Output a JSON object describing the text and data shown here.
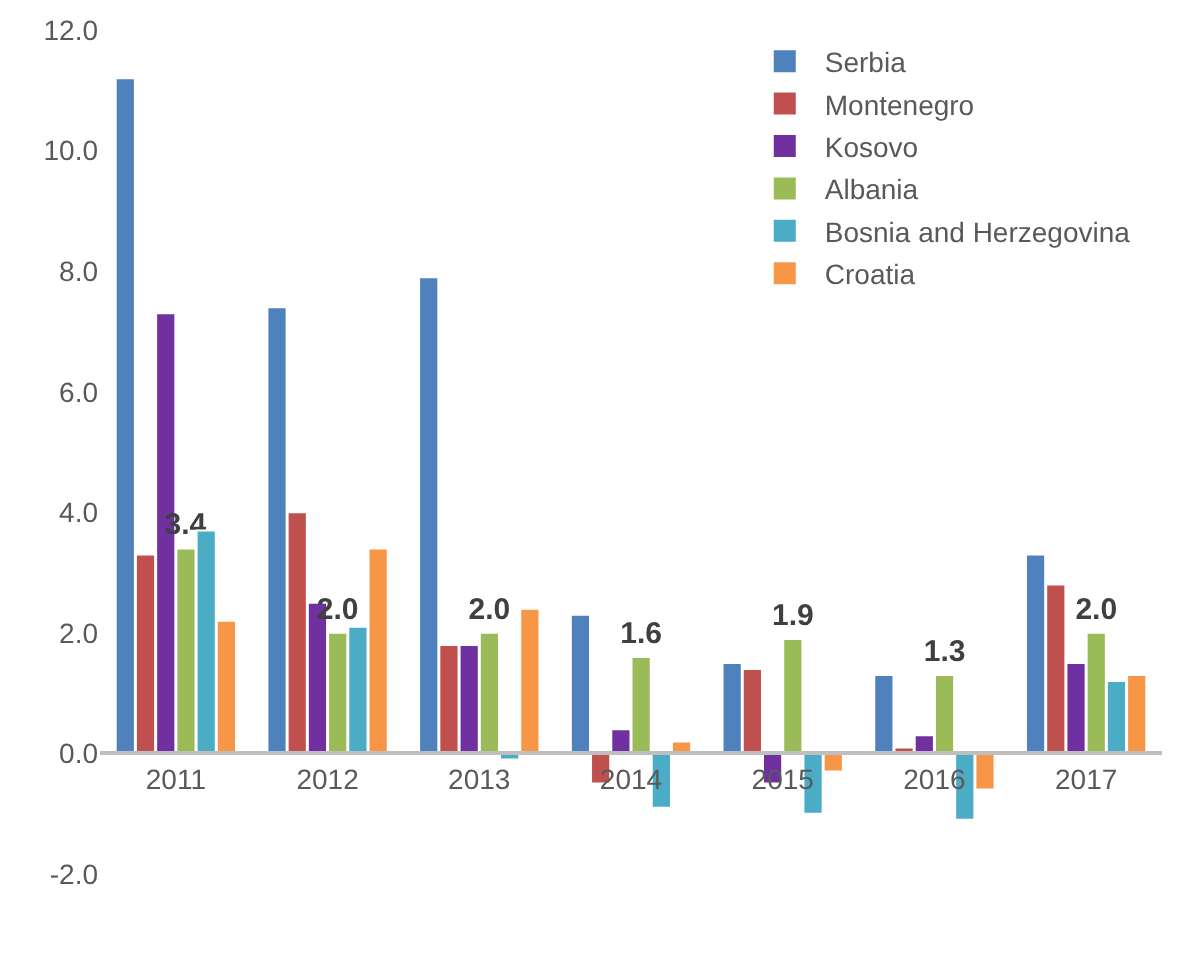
{
  "chart_data": {
    "type": "bar",
    "categories": [
      "2011",
      "2012",
      "2013",
      "2014",
      "2015",
      "2016",
      "2017"
    ],
    "series": [
      {
        "name": "Serbia",
        "color": "#4f81bd",
        "values": [
          11.2,
          7.4,
          7.9,
          2.3,
          1.5,
          1.3,
          3.3
        ]
      },
      {
        "name": "Montenegro",
        "color": "#c0504d",
        "values": [
          3.3,
          4.0,
          1.8,
          -0.5,
          1.4,
          0.1,
          2.8
        ]
      },
      {
        "name": "Kosovo",
        "color": "#7030a0",
        "values": [
          7.3,
          2.5,
          1.8,
          0.4,
          -0.5,
          0.3,
          1.5
        ]
      },
      {
        "name": "Albania",
        "color": "#9bbb59",
        "values": [
          3.4,
          2.0,
          2.0,
          1.6,
          1.9,
          1.3,
          2.0
        ],
        "value_labels": [
          "3.4",
          "2.0",
          "2.0",
          "1.6",
          "1.9",
          "1.3",
          "2.0"
        ]
      },
      {
        "name": "Bosnia and Herzegovina",
        "color": "#4bacc6",
        "values": [
          3.7,
          2.1,
          -0.1,
          -0.9,
          -1.0,
          -1.1,
          1.2
        ]
      },
      {
        "name": "Croatia",
        "color": "#f79646",
        "values": [
          2.2,
          3.4,
          2.4,
          0.2,
          -0.3,
          -0.6,
          1.3
        ]
      }
    ],
    "ylim": [
      -2.0,
      12.0
    ],
    "yticks": [
      {
        "value": -2,
        "label": "-2.0"
      },
      {
        "value": 0,
        "label": "0.0"
      },
      {
        "value": 2,
        "label": "2.0"
      },
      {
        "value": 4,
        "label": "4.0"
      },
      {
        "value": 6,
        "label": "6.0"
      },
      {
        "value": 8,
        "label": "8.0"
      },
      {
        "value": 10,
        "label": "10.0"
      },
      {
        "value": 12,
        "label": "12.0"
      }
    ],
    "grid": false,
    "legend": "top right"
  }
}
